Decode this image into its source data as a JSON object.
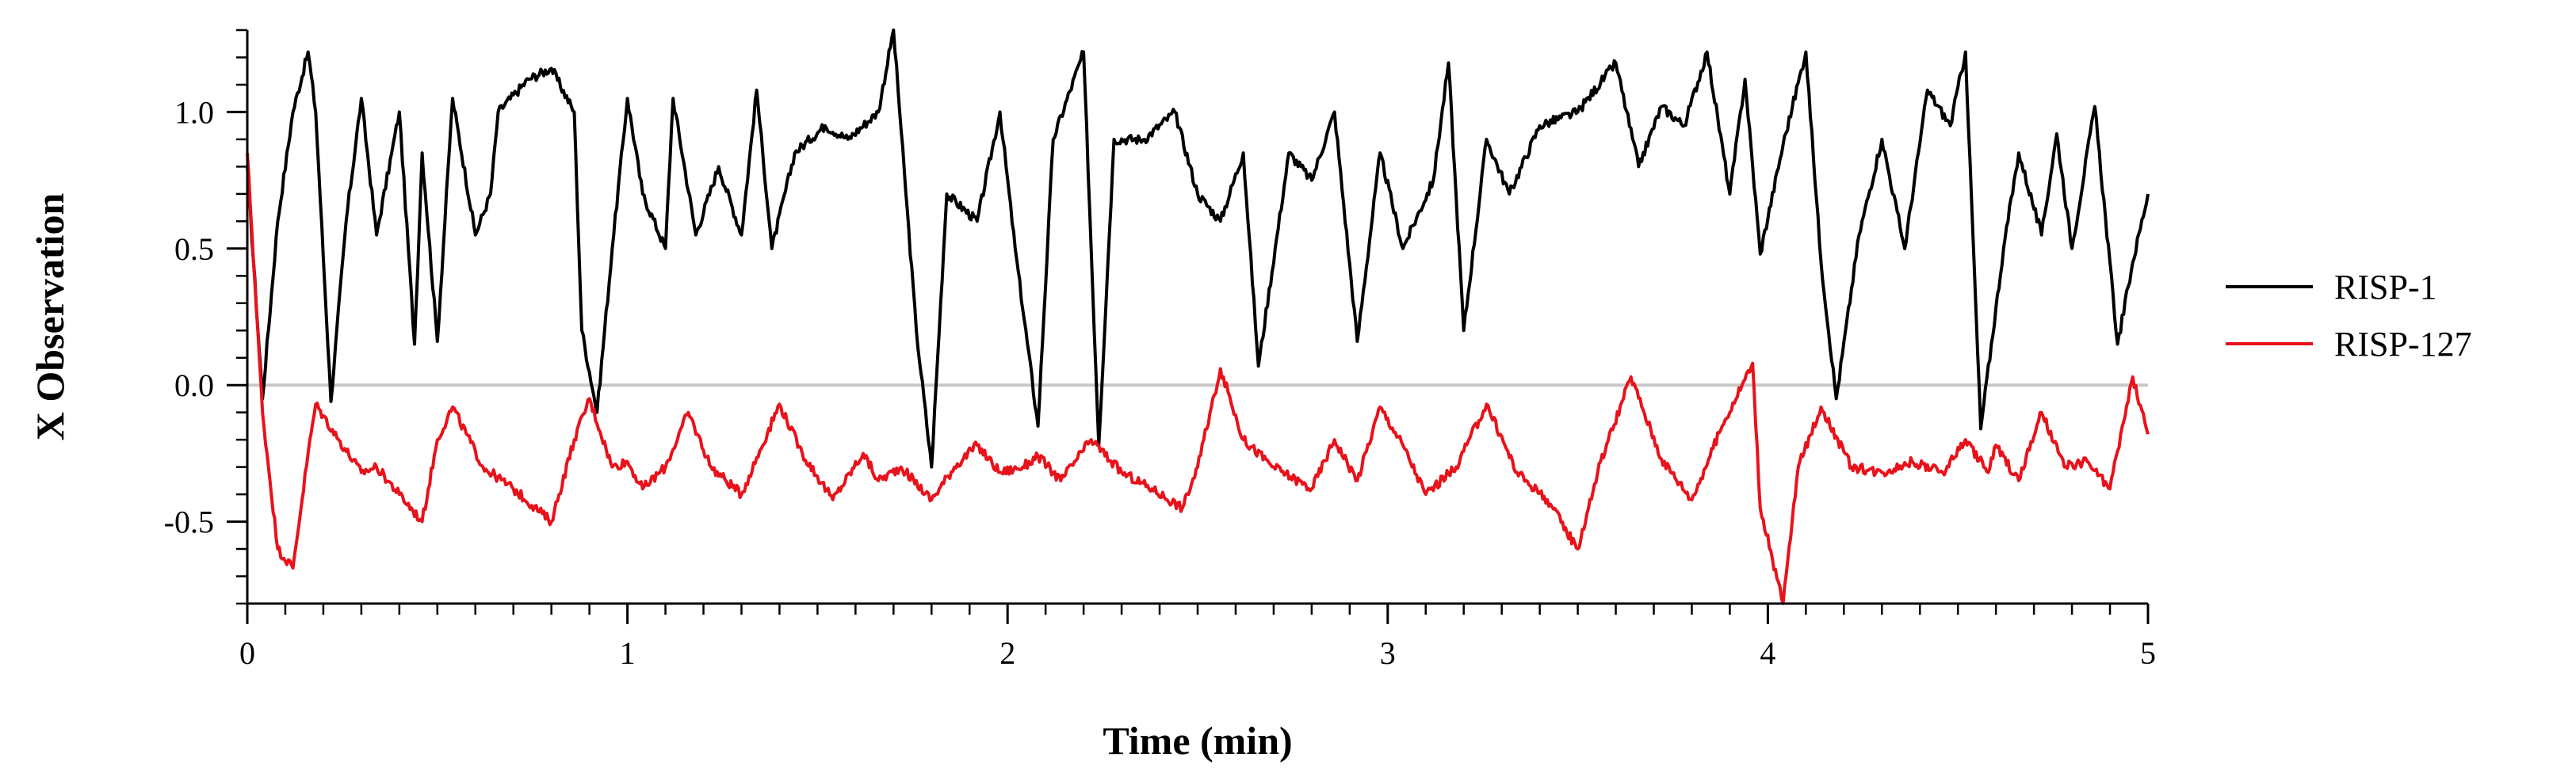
{
  "chart_data": {
    "type": "line",
    "title": "",
    "xlabel": "Time (min)",
    "ylabel": "X Observation",
    "xlim": [
      0,
      5
    ],
    "ylim": [
      -0.8,
      1.3
    ],
    "x_ticks": [
      0,
      1,
      2,
      3,
      4,
      5
    ],
    "x_tick_labels": [
      "0",
      "1",
      "2",
      "3",
      "4",
      "5"
    ],
    "y_ticks": [
      -0.5,
      0.0,
      0.5,
      1.0
    ],
    "y_tick_labels": [
      "-0.5",
      "0.0",
      "0.5",
      "1.0"
    ],
    "zero_line": true,
    "grid": false,
    "legend_position": "right",
    "series": [
      {
        "name": "RISP-1",
        "color": "#000000",
        "x": [
          0,
          0.04,
          0.08,
          0.12,
          0.16,
          0.18,
          0.22,
          0.26,
          0.3,
          0.34,
          0.38,
          0.4,
          0.44,
          0.46,
          0.5,
          0.54,
          0.6,
          0.64,
          0.66,
          0.74,
          0.8,
          0.86,
          0.88,
          0.92,
          0.96,
          1.0,
          1.04,
          1.1,
          1.12,
          1.18,
          1.24,
          1.3,
          1.34,
          1.38,
          1.44,
          1.52,
          1.58,
          1.66,
          1.7,
          1.76,
          1.8,
          1.84,
          1.92,
          1.98,
          2.02,
          2.08,
          2.12,
          2.2,
          2.24,
          2.28,
          2.36,
          2.44,
          2.5,
          2.56,
          2.62,
          2.66,
          2.74,
          2.8,
          2.86,
          2.92,
          2.98,
          3.04,
          3.12,
          3.16,
          3.2,
          3.26,
          3.32,
          3.4,
          3.5,
          3.6,
          3.66,
          3.72,
          3.78,
          3.84,
          3.9,
          3.94,
          3.98,
          4.04,
          4.1,
          4.14,
          4.18,
          4.24,
          4.3,
          4.36,
          4.42,
          4.48,
          4.52,
          4.56,
          4.62,
          4.66,
          4.72,
          4.76,
          4.8,
          4.86,
          4.92,
          4.96,
          5.0
        ],
        "y": [
          0.8,
          -0.05,
          0.6,
          1.0,
          1.22,
          1.0,
          -0.06,
          0.6,
          1.05,
          0.55,
          0.85,
          1.0,
          0.15,
          0.85,
          0.16,
          1.05,
          0.55,
          0.7,
          1.0,
          1.12,
          1.16,
          1.0,
          0.2,
          -0.1,
          0.5,
          1.05,
          0.7,
          0.5,
          1.05,
          0.55,
          0.8,
          0.55,
          1.08,
          0.5,
          0.85,
          0.95,
          0.9,
          1.0,
          1.3,
          0.2,
          -0.3,
          0.7,
          0.6,
          1.0,
          0.5,
          -0.15,
          0.9,
          1.22,
          -0.22,
          0.9,
          0.9,
          1.0,
          0.7,
          0.6,
          0.85,
          0.07,
          0.85,
          0.75,
          1.0,
          0.16,
          0.85,
          0.5,
          0.75,
          1.18,
          0.2,
          0.9,
          0.7,
          0.95,
          1.0,
          1.18,
          0.8,
          1.02,
          0.95,
          1.22,
          0.7,
          1.12,
          0.48,
          0.88,
          1.22,
          0.45,
          -0.05,
          0.55,
          0.9,
          0.5,
          1.08,
          0.95,
          1.22,
          -0.16,
          0.5,
          0.85,
          0.55,
          0.92,
          0.5,
          1.02,
          0.15,
          0.45,
          0.7
        ]
      },
      {
        "name": "RISP-127",
        "color": "#e8121a",
        "x": [
          0,
          0.04,
          0.08,
          0.12,
          0.16,
          0.18,
          0.24,
          0.3,
          0.34,
          0.4,
          0.46,
          0.5,
          0.54,
          0.62,
          0.7,
          0.8,
          0.86,
          0.9,
          0.96,
          1.0,
          1.04,
          1.1,
          1.16,
          1.22,
          1.3,
          1.4,
          1.46,
          1.54,
          1.62,
          1.66,
          1.72,
          1.8,
          1.86,
          1.92,
          1.98,
          2.04,
          2.08,
          2.14,
          2.22,
          2.3,
          2.38,
          2.46,
          2.5,
          2.56,
          2.62,
          2.7,
          2.8,
          2.86,
          2.92,
          2.98,
          3.04,
          3.1,
          3.18,
          3.26,
          3.34,
          3.42,
          3.5,
          3.56,
          3.64,
          3.72,
          3.8,
          3.88,
          3.96,
          3.98,
          4.04,
          4.08,
          4.14,
          4.22,
          4.3,
          4.38,
          4.46,
          4.52,
          4.58,
          4.6,
          4.66,
          4.72,
          4.78,
          4.84,
          4.9,
          4.96,
          5.0
        ],
        "y": [
          0.85,
          -0.1,
          -0.6,
          -0.67,
          -0.25,
          -0.07,
          -0.2,
          -0.32,
          -0.3,
          -0.4,
          -0.5,
          -0.2,
          -0.08,
          -0.3,
          -0.38,
          -0.5,
          -0.2,
          -0.05,
          -0.3,
          -0.28,
          -0.38,
          -0.3,
          -0.1,
          -0.3,
          -0.4,
          -0.07,
          -0.25,
          -0.42,
          -0.25,
          -0.35,
          -0.3,
          -0.42,
          -0.3,
          -0.22,
          -0.32,
          -0.3,
          -0.26,
          -0.35,
          -0.2,
          -0.32,
          -0.38,
          -0.45,
          -0.3,
          0.06,
          -0.2,
          -0.3,
          -0.38,
          -0.2,
          -0.35,
          -0.08,
          -0.22,
          -0.4,
          -0.3,
          -0.07,
          -0.32,
          -0.42,
          -0.6,
          -0.28,
          0.03,
          -0.27,
          -0.42,
          -0.15,
          0.08,
          -0.45,
          -0.8,
          -0.3,
          -0.08,
          -0.3,
          -0.32,
          -0.28,
          -0.32,
          -0.2,
          -0.32,
          -0.22,
          -0.35,
          -0.1,
          -0.3,
          -0.28,
          -0.38,
          0.03,
          -0.18
        ]
      }
    ]
  }
}
